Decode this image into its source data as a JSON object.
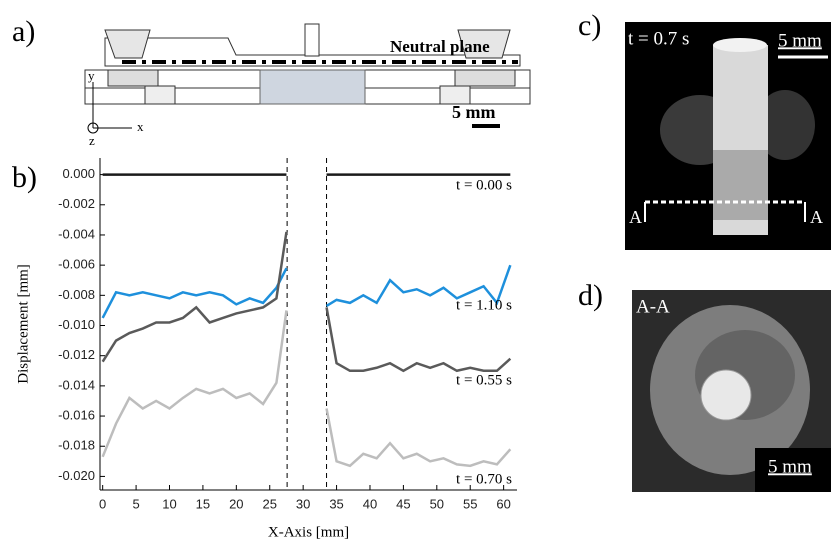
{
  "panels": {
    "a": {
      "label": "a)",
      "neutral_plane": "Neutral plane",
      "scale": "5 mm",
      "axis_x": "x",
      "axis_y": "y",
      "axis_z": "z"
    },
    "c": {
      "label": "c)",
      "time": "t = 0.7 s",
      "scale": "5 mm",
      "section_left": "A",
      "section_right": "A"
    },
    "d": {
      "label": "d)",
      "section": "A-A",
      "scale": "5 mm"
    },
    "b": {
      "label": "b)"
    }
  },
  "chart_data": {
    "type": "line",
    "x_label": "X-Axis [mm]",
    "y_label": "Displacement [mm]",
    "x": [
      0,
      2,
      4,
      6,
      8,
      10,
      12,
      14,
      16,
      18,
      20,
      22,
      24,
      26,
      27.5,
      30,
      33.5,
      35,
      37,
      39,
      41,
      43,
      45,
      47,
      49,
      51,
      53,
      55,
      57,
      59,
      61
    ],
    "series": [
      {
        "name": "t = 0.00 s",
        "color": "#1a1a1a",
        "values": [
          0,
          0,
          0,
          0,
          0,
          0,
          0,
          0,
          0,
          0,
          0,
          0,
          0,
          0,
          0,
          null,
          0,
          0,
          0,
          0,
          0,
          0,
          0,
          0,
          0,
          0,
          0,
          0,
          0,
          0,
          0
        ]
      },
      {
        "name": "t = 1.10 s",
        "color": "#1e90dc",
        "values": [
          -0.0095,
          -0.0078,
          -0.008,
          -0.0078,
          -0.008,
          -0.0082,
          -0.0078,
          -0.008,
          -0.0078,
          -0.008,
          -0.0086,
          -0.0082,
          -0.0085,
          -0.0075,
          -0.0062,
          null,
          -0.0087,
          -0.0083,
          -0.0085,
          -0.008,
          -0.0085,
          -0.007,
          -0.0078,
          -0.0076,
          -0.008,
          -0.0075,
          -0.0082,
          -0.0078,
          -0.0074,
          -0.0085,
          -0.006
        ]
      },
      {
        "name": "t = 0.55 s",
        "color": "#5a5a5a",
        "values": [
          -0.0124,
          -0.011,
          -0.0105,
          -0.0102,
          -0.0098,
          -0.0098,
          -0.0095,
          -0.0088,
          -0.0098,
          -0.0095,
          -0.0092,
          -0.009,
          -0.0088,
          -0.0082,
          -0.0038,
          null,
          -0.0088,
          -0.0125,
          -0.013,
          -0.013,
          -0.0128,
          -0.0125,
          -0.013,
          -0.0125,
          -0.0128,
          -0.0125,
          -0.013,
          -0.0128,
          -0.013,
          -0.013,
          -0.0122
        ]
      },
      {
        "name": "t = 0.70 s",
        "color": "#bdbdbd",
        "values": [
          -0.0187,
          -0.0165,
          -0.0148,
          -0.0155,
          -0.015,
          -0.0155,
          -0.0148,
          -0.0142,
          -0.0145,
          -0.0142,
          -0.0148,
          -0.0145,
          -0.0152,
          -0.0138,
          -0.009,
          null,
          -0.0155,
          -0.019,
          -0.0193,
          -0.0185,
          -0.0188,
          -0.0178,
          -0.0188,
          -0.0185,
          -0.019,
          -0.0188,
          -0.0192,
          -0.0193,
          -0.019,
          -0.0192,
          -0.0182
        ]
      }
    ],
    "vlines": [
      27.6,
      33.5
    ],
    "xlim": [
      -0.4,
      62
    ],
    "ylim": [
      -0.0209,
      0.0011
    ],
    "xticks": [
      0,
      5,
      10,
      15,
      20,
      25,
      30,
      35,
      40,
      45,
      50,
      55,
      60
    ],
    "yticks": [
      {
        "value": 0,
        "label": "0.000"
      },
      {
        "value": -0.002,
        "label": "-0.002"
      },
      {
        "value": -0.004,
        "label": "-0.004"
      },
      {
        "value": -0.006,
        "label": "-0.006"
      },
      {
        "value": -0.008,
        "label": "-0.008"
      },
      {
        "value": -0.01,
        "label": "-0.010"
      },
      {
        "value": -0.012,
        "label": "-0.012"
      },
      {
        "value": -0.014,
        "label": "-0.014"
      },
      {
        "value": -0.016,
        "label": "-0.016"
      },
      {
        "value": -0.018,
        "label": "-0.018"
      },
      {
        "value": -0.02,
        "label": "-0.020"
      }
    ]
  }
}
